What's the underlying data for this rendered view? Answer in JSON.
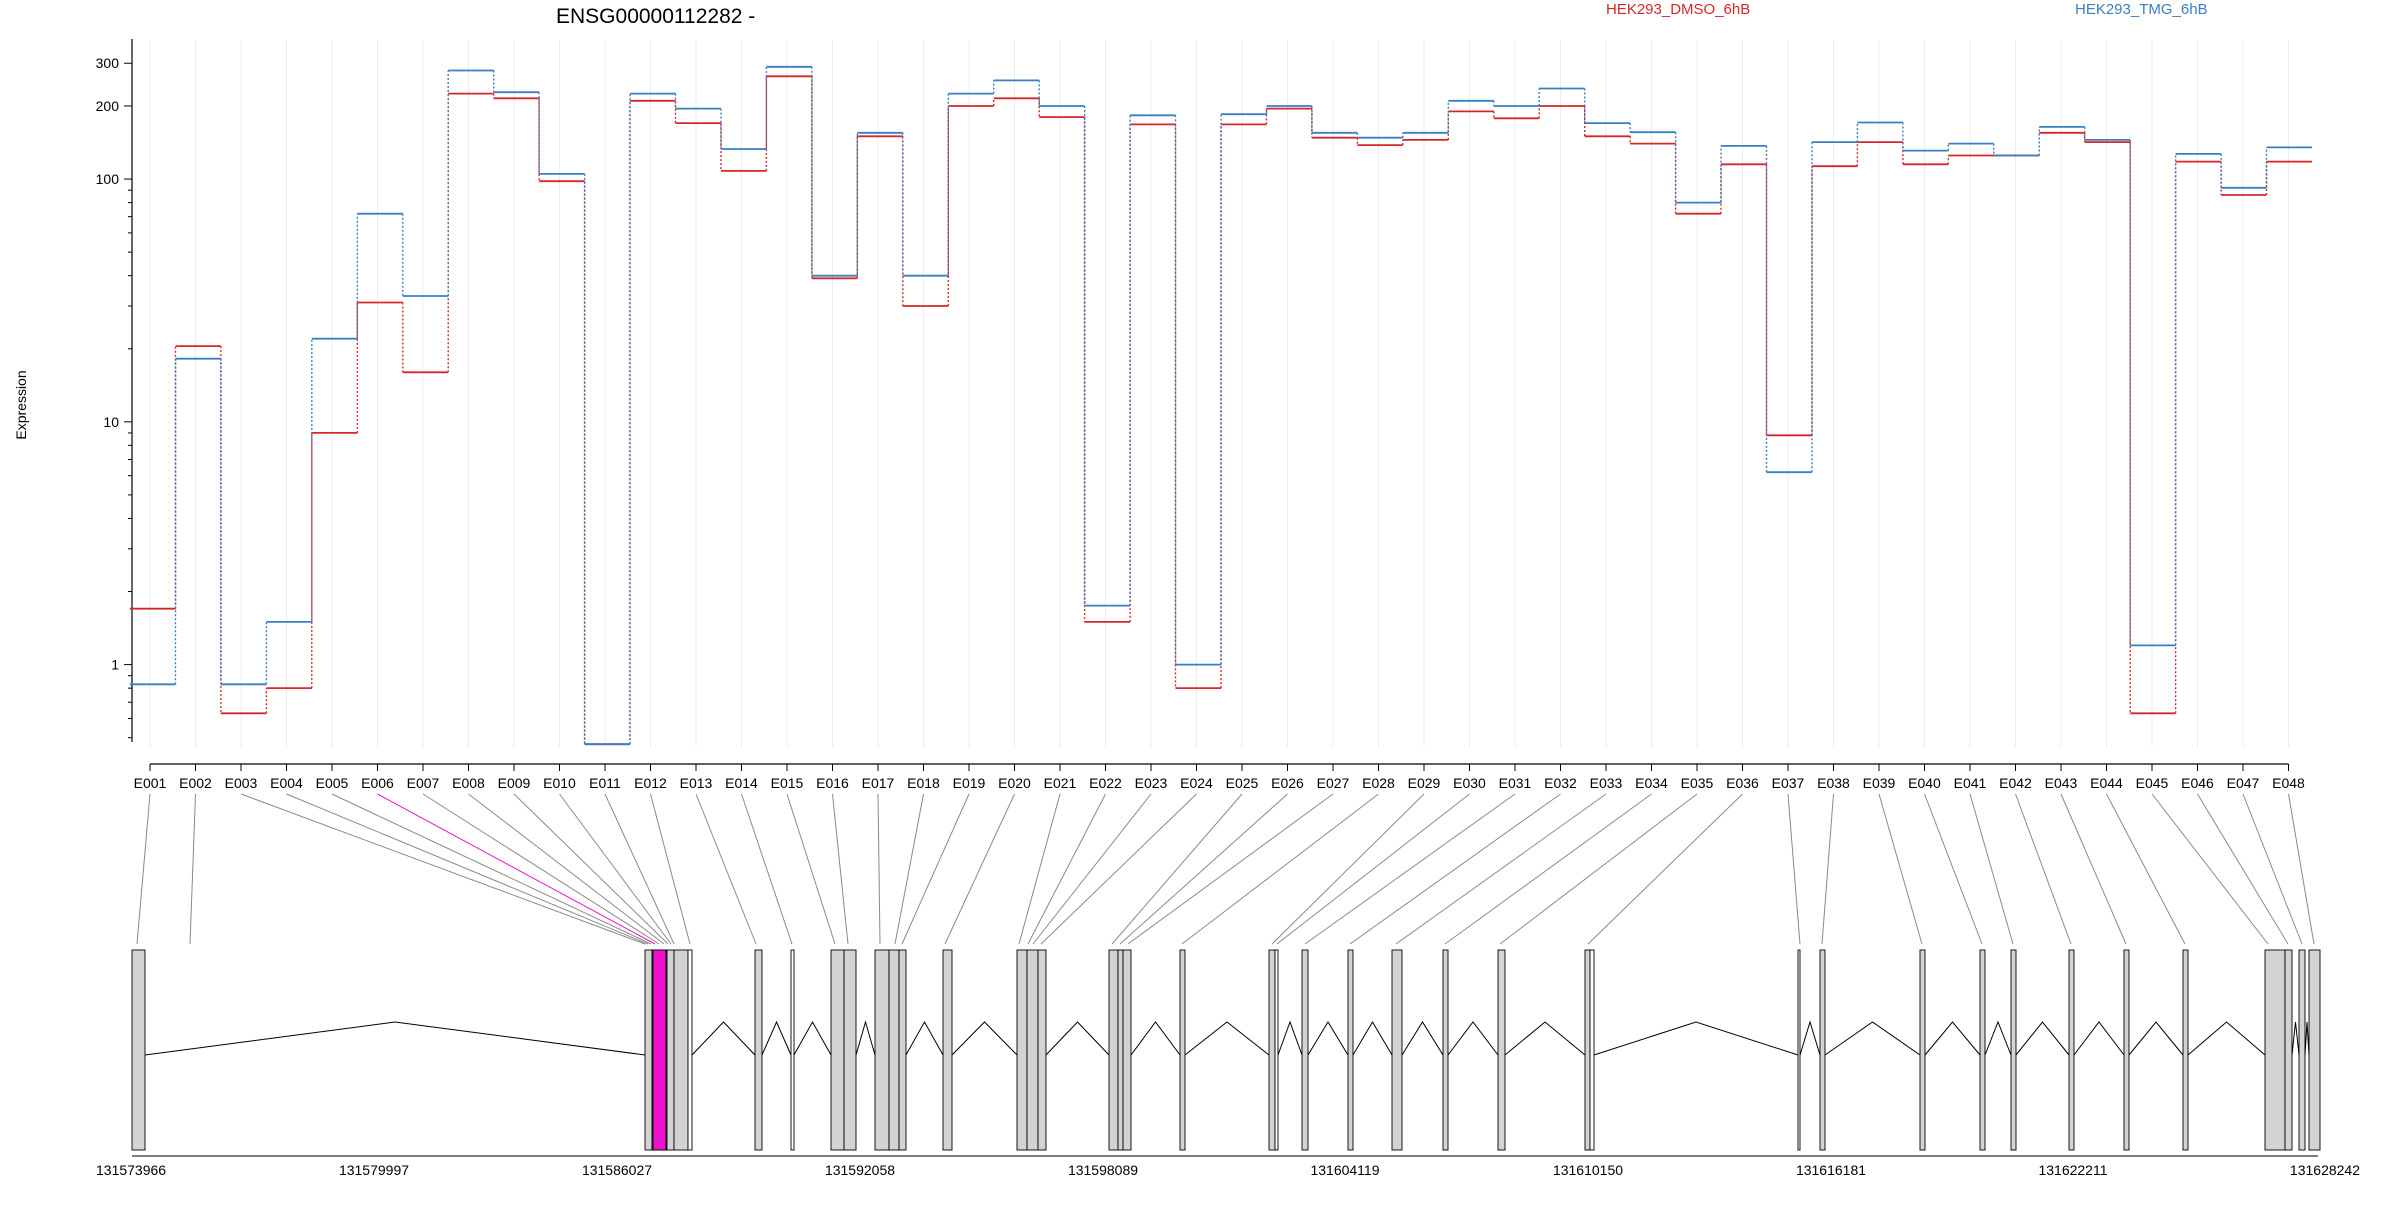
{
  "chart_data": {
    "type": "line",
    "title": "ENSG00000112282 -",
    "ylabel": "Expression",
    "yscale": "log",
    "ylim": [
      0.48,
      360
    ],
    "yticks": [
      "1",
      "10",
      "100",
      "200",
      "300"
    ],
    "grid": true,
    "legend_placement": "top",
    "categories": [
      "E001",
      "E002",
      "E003",
      "E004",
      "E005",
      "E006",
      "E007",
      "E008",
      "E009",
      "E010",
      "E011",
      "E012",
      "E013",
      "E014",
      "E015",
      "E016",
      "E017",
      "E018",
      "E019",
      "E020",
      "E021",
      "E022",
      "E023",
      "E024",
      "E025",
      "E026",
      "E027",
      "E028",
      "E029",
      "E030",
      "E031",
      "E032",
      "E033",
      "E034",
      "E035",
      "E036",
      "E037",
      "E038",
      "E039",
      "E040",
      "E041",
      "E042",
      "E043",
      "E044",
      "E045",
      "E046",
      "E047",
      "E048"
    ],
    "series": [
      {
        "name": "HEK293_DMSO_6hB",
        "color": "#d62728",
        "values": [
          1.7,
          20.5,
          0.63,
          0.8,
          9,
          31,
          16,
          225,
          215,
          98,
          0.47,
          210,
          170,
          108,
          265,
          39,
          150,
          30,
          200,
          215,
          180,
          1.5,
          168,
          0.8,
          168,
          195,
          148,
          138,
          145,
          190,
          178,
          200,
          150,
          140,
          72,
          115,
          8.8,
          113,
          142,
          115,
          125,
          125,
          155,
          142,
          0.63,
          118,
          86,
          118
        ]
      },
      {
        "name": "HEK293_TMG_6hB",
        "color": "#3a7fc1",
        "values": [
          0.83,
          18.2,
          0.83,
          1.5,
          22,
          72,
          33,
          280,
          228,
          105,
          0.47,
          225,
          195,
          133,
          290,
          40,
          155,
          40,
          225,
          255,
          200,
          1.75,
          183,
          1.0,
          185,
          200,
          155,
          148,
          155,
          210,
          200,
          236,
          170,
          156,
          80,
          137,
          6.2,
          142,
          171,
          131,
          140,
          125,
          164,
          145,
          1.2,
          127,
          92,
          135
        ]
      }
    ],
    "gene_model": {
      "coordinates": [
        "131573966",
        "131579997",
        "131586027",
        "131592058",
        "131598089",
        "131604119",
        "131610150",
        "131616181",
        "131622211",
        "131628242"
      ],
      "highlight_exon": "E006",
      "highlight_color": "#ee11cc"
    }
  }
}
